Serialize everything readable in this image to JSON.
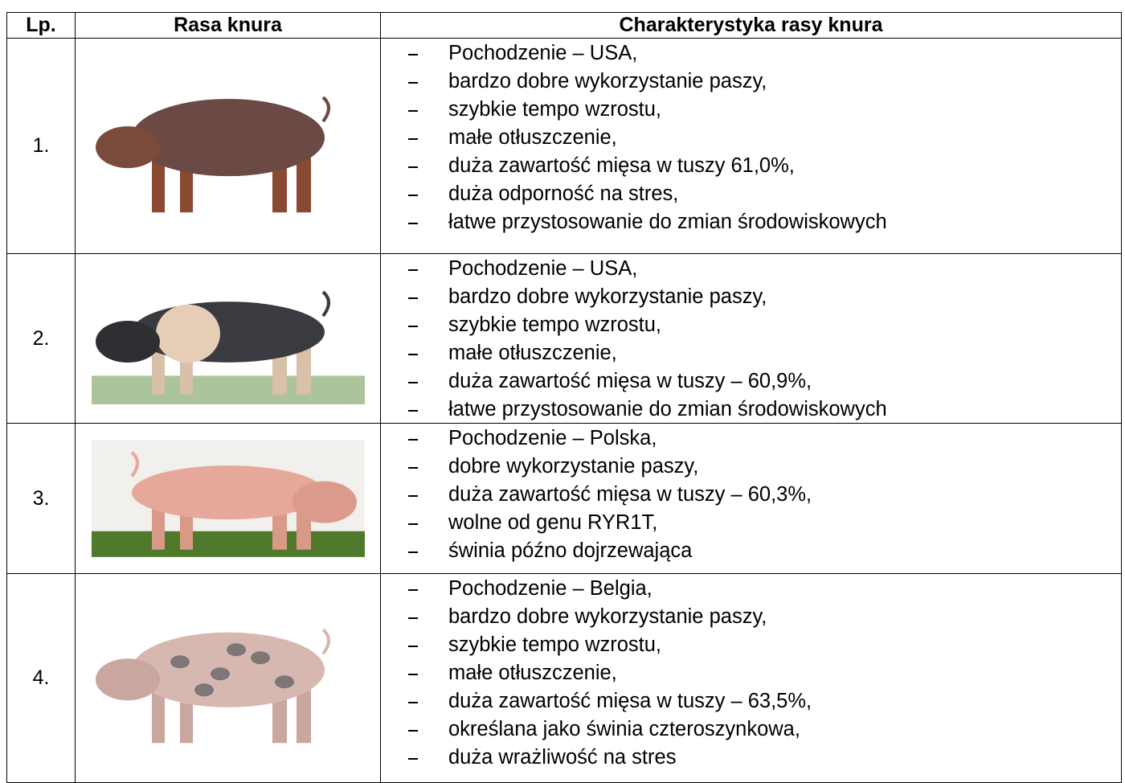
{
  "table": {
    "header": [
      "Lp.",
      "Rasa knura",
      "Charakterystyka rasy knura"
    ],
    "rows": [
      {
        "number": "1.",
        "traits": [
          "Pochodzenie – USA,",
          "bardzo dobre wykorzystanie paszy,",
          "szybkie tempo wzrostu,",
          "małe otłuszczenie,",
          "duża zawartość mięsa w tuszy 61,0%,",
          "duża odporność na stres,",
          "łatwe przystosowanie do zmian środowiskowych"
        ]
      },
      {
        "number": "2.",
        "traits": [
          "Pochodzenie – USA,",
          "bardzo dobre wykorzystanie paszy,",
          "szybkie tempo wzrostu,",
          "małe otłuszczenie,",
          "duża zawartość mięsa w tuszy – 60,9%,",
          "łatwe przystosowanie do zmian środowiskowych"
        ]
      },
      {
        "number": "3.",
        "traits": [
          "Pochodzenie – Polska,",
          "dobre wykorzystanie paszy,",
          "duża zawartość mięsa w tuszy – 60,3%,",
          "wolne od genu RYR1T,",
          "świnia późno dojrzewająca"
        ]
      },
      {
        "number": "4.",
        "traits": [
          "Pochodzenie – Belgia,",
          "bardzo dobre wykorzystanie paszy,",
          "szybkie tempo wzrostu,",
          "małe otłuszczenie,",
          "duża zawartość mięsa w tuszy – 63,5%,",
          "określana jako świnia czteroszynkowa,",
          "duża wrażliwość na stres"
        ]
      }
    ]
  }
}
